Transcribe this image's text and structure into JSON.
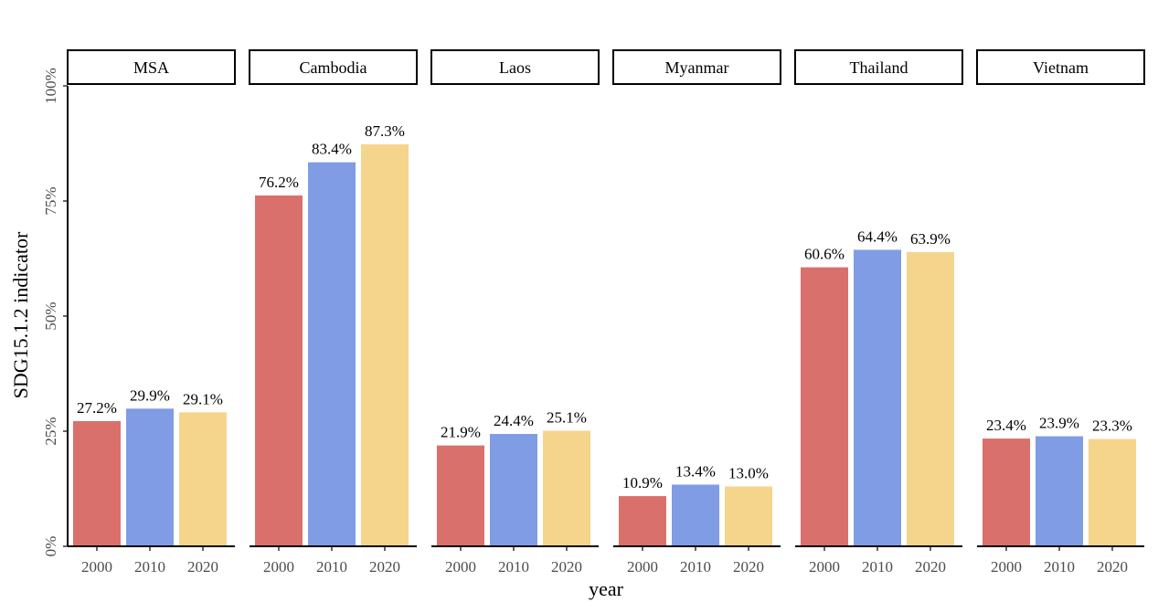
{
  "chart_data": {
    "type": "bar",
    "xlabel": "year",
    "ylabel": "SDG15.1.2 indicator",
    "ylim": [
      0,
      100
    ],
    "yticks": [
      "0%",
      "25%",
      "50%",
      "75%",
      "100%"
    ],
    "ytick_values": [
      0,
      25,
      50,
      75,
      100
    ],
    "categories": [
      "2000",
      "2010",
      "2020"
    ],
    "colors": [
      "#D9706C",
      "#7F9CE5",
      "#F5D58C"
    ],
    "grid": false,
    "legend": "none",
    "panels": [
      {
        "name": "MSA",
        "values": [
          27.2,
          29.9,
          29.1
        ],
        "labels": [
          "27.2%",
          "29.9%",
          "29.1%"
        ]
      },
      {
        "name": "Cambodia",
        "values": [
          76.2,
          83.4,
          87.3
        ],
        "labels": [
          "76.2%",
          "83.4%",
          "87.3%"
        ]
      },
      {
        "name": "Laos",
        "values": [
          21.9,
          24.4,
          25.1
        ],
        "labels": [
          "21.9%",
          "24.4%",
          "25.1%"
        ]
      },
      {
        "name": "Myanmar",
        "values": [
          10.9,
          13.4,
          13.0
        ],
        "labels": [
          "10.9%",
          "13.4%",
          "13.0%"
        ]
      },
      {
        "name": "Thailand",
        "values": [
          60.6,
          64.4,
          63.9
        ],
        "labels": [
          "60.6%",
          "64.4%",
          "63.9%"
        ]
      },
      {
        "name": "Vietnam",
        "values": [
          23.4,
          23.9,
          23.3
        ],
        "labels": [
          "23.4%",
          "23.9%",
          "23.3%"
        ]
      }
    ]
  }
}
